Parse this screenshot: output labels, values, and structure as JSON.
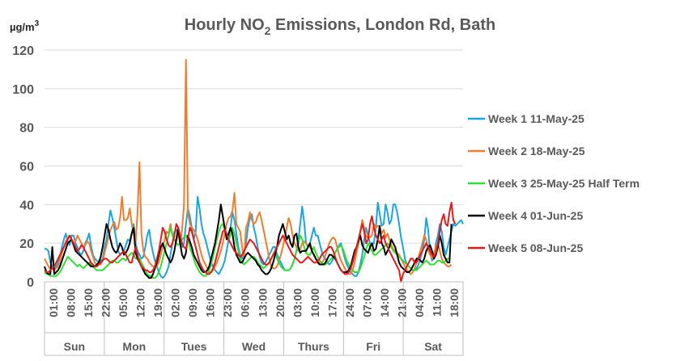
{
  "chart_data": {
    "type": "line",
    "title": "Hourly NO",
    "title_subscript": "2",
    "title_suffix": " Emissions, London Rd, Bath",
    "unit": "µg/m",
    "unit_superscript": "3",
    "ylim": [
      0,
      120
    ],
    "yticks": [
      "0",
      "20",
      "40",
      "60",
      "80",
      "100",
      "120"
    ],
    "grid": true,
    "legend_position": "right",
    "x_tick_labels": [
      "01:00",
      "08:00",
      "15:00",
      "22:00",
      "05:00",
      "12:00",
      "19:00",
      "02:00",
      "09:00",
      "16:00",
      "23:00",
      "06:00",
      "13:00",
      "20:00",
      "03:00",
      "10:00",
      "17:00",
      "24:00",
      "07:00",
      "14:00",
      "21:00",
      "04:00",
      "11:00",
      "18:00"
    ],
    "day_labels": [
      "Sun",
      "Mon",
      "Tues",
      "Wed",
      "Thurs",
      "Fri",
      "Sat"
    ],
    "series": [
      {
        "name": "Week 1 11-May-25",
        "color": "#1CA4DD",
        "values": [
          17,
          17,
          16,
          10,
          8,
          7,
          8,
          10,
          13,
          18,
          22,
          25,
          21,
          19,
          24,
          24,
          20,
          18,
          15,
          14,
          16,
          20,
          22,
          25,
          19,
          14,
          12,
          11,
          10,
          11,
          12,
          18,
          22,
          30,
          37,
          33,
          28,
          22,
          16,
          14,
          15,
          16,
          19,
          22,
          21,
          25,
          30,
          20,
          16,
          14,
          12,
          13,
          18,
          24,
          27,
          20,
          15,
          11,
          8,
          5,
          3,
          2,
          3,
          5,
          8,
          14,
          20,
          26,
          27,
          25,
          21,
          18,
          20,
          30,
          38,
          34,
          28,
          22,
          26,
          44,
          38,
          30,
          25,
          22,
          18,
          14,
          10,
          8,
          6,
          5,
          4,
          6,
          8,
          11,
          16,
          22,
          28,
          36,
          32,
          25,
          18,
          14,
          12,
          15,
          20,
          28,
          33,
          35,
          28,
          24,
          18,
          13,
          10,
          9,
          10,
          12,
          14,
          16,
          18,
          18,
          14,
          12,
          10,
          8,
          6,
          6,
          6,
          7,
          9,
          12,
          16,
          22,
          30,
          39,
          31,
          20,
          18,
          20,
          24,
          28,
          24,
          24,
          20,
          16,
          13,
          12,
          10,
          9,
          10,
          12,
          15,
          17,
          19,
          20,
          16,
          12,
          9,
          7,
          5,
          4,
          3,
          3,
          5,
          9,
          14,
          22,
          28,
          24,
          20,
          19,
          20,
          28,
          41,
          35,
          29,
          30,
          40,
          36,
          30,
          32,
          40,
          40,
          36,
          30,
          23,
          18,
          12,
          9,
          8,
          7,
          6,
          6,
          7,
          9,
          12,
          16,
          22,
          33,
          27,
          15,
          11,
          12,
          20,
          24,
          30,
          26,
          18,
          14,
          18,
          22,
          26,
          30,
          29,
          30,
          31,
          32,
          30
        ]
      },
      {
        "name": "Week 2 18-May-25",
        "color": "#ED7D31",
        "values": [
          12,
          10,
          8,
          7,
          7,
          6,
          7,
          8,
          11,
          15,
          18,
          21,
          23,
          24,
          22,
          20,
          21,
          24,
          22,
          20,
          18,
          19,
          21,
          20,
          16,
          13,
          10,
          9,
          9,
          9,
          11,
          15,
          19,
          23,
          27,
          29,
          31,
          27,
          28,
          33,
          44,
          32,
          32,
          33,
          38,
          30,
          25,
          20,
          36,
          62,
          25,
          16,
          13,
          12,
          10,
          9,
          8,
          8,
          8,
          10,
          14,
          18,
          22,
          26,
          25,
          30,
          24,
          22,
          21,
          25,
          20,
          27,
          40,
          115,
          36,
          30,
          28,
          27,
          25,
          22,
          18,
          14,
          11,
          9,
          7,
          5,
          5,
          6,
          8,
          10,
          13,
          16,
          20,
          25,
          30,
          33,
          34,
          37,
          46,
          30,
          28,
          26,
          18,
          12,
          28,
          31,
          36,
          32,
          30,
          31,
          34,
          36,
          32,
          27,
          22,
          17,
          12,
          8,
          7,
          7,
          8,
          11,
          14,
          18,
          23,
          28,
          33,
          30,
          24,
          20,
          18,
          16,
          17,
          20,
          21,
          20,
          19,
          18,
          16,
          14,
          12,
          11,
          10,
          10,
          11,
          14,
          17,
          20,
          22,
          23,
          22,
          18,
          14,
          11,
          9,
          7,
          5,
          4,
          4,
          6,
          10,
          15,
          20,
          26,
          32,
          28,
          23,
          24,
          23,
          24,
          30,
          28,
          29,
          28,
          25,
          27,
          23,
          25,
          22,
          19,
          17,
          16,
          15,
          14,
          12,
          10,
          8,
          6,
          5,
          4,
          5,
          7,
          10,
          13,
          16,
          20,
          24,
          22,
          16,
          14,
          12,
          15,
          18,
          20,
          16,
          12,
          10,
          9,
          8,
          8,
          9
        ]
      },
      {
        "name": "Week 3 25-May-25 Half Term",
        "color": "#33DD33",
        "values": [
          5,
          4,
          4,
          3,
          3,
          3,
          3,
          4,
          5,
          7,
          9,
          11,
          13,
          12,
          11,
          10,
          9,
          8,
          9,
          8,
          7,
          8,
          9,
          10,
          9,
          8,
          7,
          6,
          6,
          6,
          6,
          7,
          8,
          9,
          10,
          11,
          11,
          10,
          10,
          11,
          12,
          12,
          11,
          13,
          14,
          15,
          14,
          12,
          12,
          12,
          10,
          8,
          6,
          4,
          3,
          3,
          2,
          2,
          3,
          5,
          8,
          12,
          16,
          20,
          24,
          28,
          24,
          22,
          20,
          19,
          20,
          22,
          23,
          24,
          22,
          18,
          15,
          12,
          9,
          7,
          5,
          4,
          3,
          3,
          4,
          6,
          9,
          13,
          18,
          22,
          26,
          29,
          30,
          27,
          24,
          22,
          24,
          28,
          25,
          20,
          16,
          12,
          10,
          9,
          10,
          11,
          12,
          13,
          13,
          12,
          10,
          9,
          8,
          7,
          8,
          9,
          10,
          12,
          14,
          15,
          12,
          10,
          8,
          7,
          6,
          6,
          6,
          7,
          9,
          12,
          16,
          20,
          24,
          22,
          18,
          15,
          14,
          14,
          16,
          18,
          15,
          13,
          11,
          10,
          9,
          9,
          10,
          11,
          12,
          13,
          15,
          17,
          18,
          19,
          17,
          14,
          11,
          9,
          7,
          6,
          5,
          5,
          5,
          7,
          10,
          13,
          17,
          20,
          18,
          16,
          14,
          14,
          15,
          16,
          17,
          18,
          19,
          20,
          19,
          18,
          16,
          15,
          14,
          13,
          12,
          11,
          10,
          9,
          8,
          7,
          6,
          6,
          6,
          7,
          8,
          9,
          10,
          11,
          10,
          9,
          9,
          9,
          10,
          11,
          11,
          10,
          10,
          11,
          12,
          12
        ]
      },
      {
        "name": "Week 4 01-Jun-25",
        "color": "#000000",
        "values": [
          8,
          5,
          4,
          4,
          18,
          4,
          5,
          6,
          8,
          11,
          14,
          17,
          20,
          21,
          22,
          19,
          16,
          15,
          14,
          13,
          12,
          11,
          10,
          9,
          8,
          8,
          8,
          9,
          10,
          13,
          18,
          24,
          30,
          27,
          22,
          18,
          16,
          15,
          17,
          20,
          18,
          14,
          15,
          17,
          20,
          25,
          28,
          15,
          12,
          10,
          8,
          6,
          4,
          3,
          2,
          2,
          4,
          7,
          10,
          14,
          18,
          20,
          17,
          14,
          12,
          10,
          12,
          16,
          22,
          28,
          20,
          14,
          12,
          15,
          24,
          21,
          18,
          14,
          12,
          10,
          8,
          6,
          5,
          5,
          6,
          8,
          12,
          16,
          20,
          26,
          32,
          40,
          34,
          28,
          22,
          25,
          28,
          25,
          18,
          14,
          12,
          10,
          10,
          12,
          14,
          15,
          14,
          13,
          12,
          11,
          9,
          8,
          6,
          5,
          4,
          4,
          5,
          7,
          10,
          14,
          18,
          24,
          27,
          30,
          26,
          22,
          24,
          20,
          18,
          24,
          25,
          18,
          15,
          16,
          16,
          16,
          18,
          20,
          16,
          14,
          12,
          10,
          9,
          9,
          9,
          10,
          12,
          14,
          14,
          13,
          12,
          10,
          8,
          6,
          5,
          5,
          5,
          6,
          8,
          12,
          16,
          18,
          21,
          24,
          19,
          17,
          16,
          15,
          18,
          20,
          16,
          17,
          22,
          29,
          20,
          18,
          14,
          16,
          18,
          22,
          20,
          18,
          14,
          10,
          8,
          7,
          6,
          5,
          5,
          6,
          8,
          10,
          12,
          12,
          11,
          10,
          12,
          16,
          18,
          19,
          16,
          12,
          14,
          18,
          24,
          20,
          14,
          12,
          10,
          10,
          30
        ]
      },
      {
        "name": "Week 5 08-Jun-25",
        "color": "#E01B1B",
        "values": [
          6,
          5,
          5,
          6,
          7,
          8,
          10,
          12,
          14,
          16,
          18,
          20,
          22,
          24,
          22,
          20,
          18,
          16,
          17,
          19,
          18,
          16,
          14,
          12,
          10,
          9,
          8,
          8,
          9,
          10,
          11,
          12,
          12,
          11,
          10,
          10,
          11,
          12,
          13,
          14,
          15,
          16,
          14,
          12,
          10,
          10,
          14,
          18,
          14,
          10,
          8,
          7,
          6,
          6,
          5,
          5,
          6,
          8,
          12,
          16,
          22,
          28,
          26,
          22,
          19,
          18,
          20,
          24,
          30,
          28,
          24,
          20,
          18,
          17,
          22,
          28,
          26,
          22,
          18,
          14,
          10,
          8,
          6,
          5,
          4,
          4,
          5,
          7,
          10,
          14,
          18,
          22,
          26,
          27,
          25,
          22,
          20,
          18,
          16,
          15,
          14,
          13,
          14,
          16,
          18,
          20,
          22,
          21,
          20,
          18,
          16,
          14,
          12,
          10,
          9,
          9,
          10,
          12,
          14,
          16,
          18,
          20,
          22,
          24,
          22,
          20,
          18,
          16,
          14,
          13,
          12,
          11,
          10,
          10,
          11,
          12,
          13,
          12,
          11,
          10,
          10,
          11,
          12,
          14,
          15,
          16,
          17,
          18,
          18,
          16,
          13,
          10,
          8,
          6,
          5,
          4,
          4,
          5,
          7,
          10,
          14,
          18,
          22,
          26,
          30,
          26,
          20,
          22,
          30,
          34,
          28,
          24,
          22,
          20,
          22,
          24,
          20,
          18,
          16,
          14,
          12,
          10,
          8,
          6,
          0,
          4,
          6,
          8,
          10,
          12,
          12,
          10,
          10,
          12,
          14,
          16,
          18,
          20,
          18,
          16,
          14,
          13,
          15,
          20,
          26,
          32,
          35,
          30,
          29,
          36,
          41,
          32,
          30
        ]
      }
    ]
  }
}
